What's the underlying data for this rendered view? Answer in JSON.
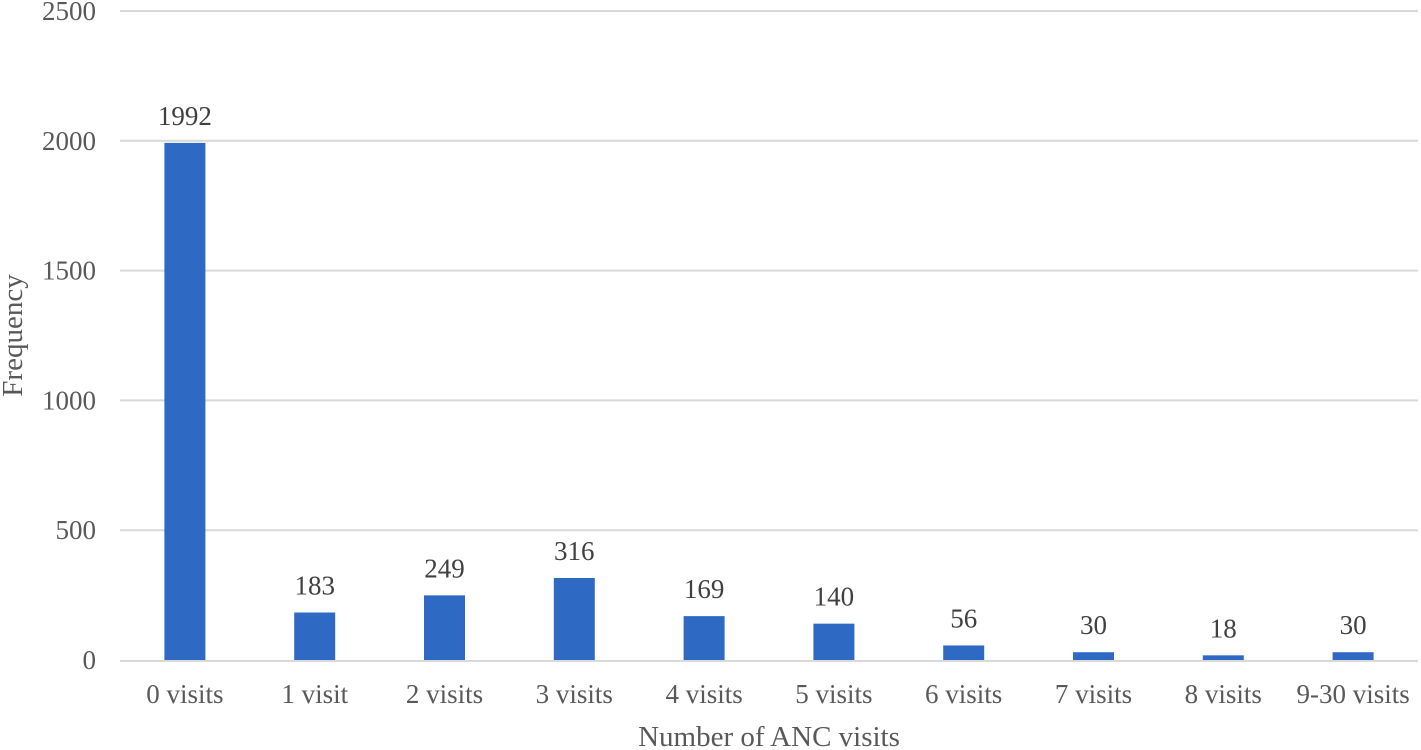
{
  "chart_data": {
    "type": "bar",
    "title": "",
    "xlabel": "Number of ANC visits",
    "ylabel": "Frequency",
    "categories": [
      "0 visits",
      "1 visit",
      "2 visits",
      "3 visits",
      "4 visits",
      "5 visits",
      "6 visits",
      "7 visits",
      "8 visits",
      "9-30 visits"
    ],
    "values": [
      1992,
      183,
      249,
      316,
      169,
      140,
      56,
      30,
      18,
      30
    ],
    "data_labels": [
      "1992",
      "183",
      "249",
      "316",
      "169",
      "140",
      "56",
      "30",
      "18",
      "30"
    ],
    "ylim": [
      0,
      2500
    ],
    "yticks": [
      0,
      500,
      1000,
      1500,
      2000,
      2500
    ],
    "ytick_labels": [
      "0",
      "500",
      "1000",
      "1500",
      "2000",
      "2500"
    ],
    "grid": true,
    "legend": "none",
    "colors": {
      "bar": "#2E6AC4",
      "grid": "#D9D9D9",
      "axis": "#D9D9D9"
    }
  }
}
